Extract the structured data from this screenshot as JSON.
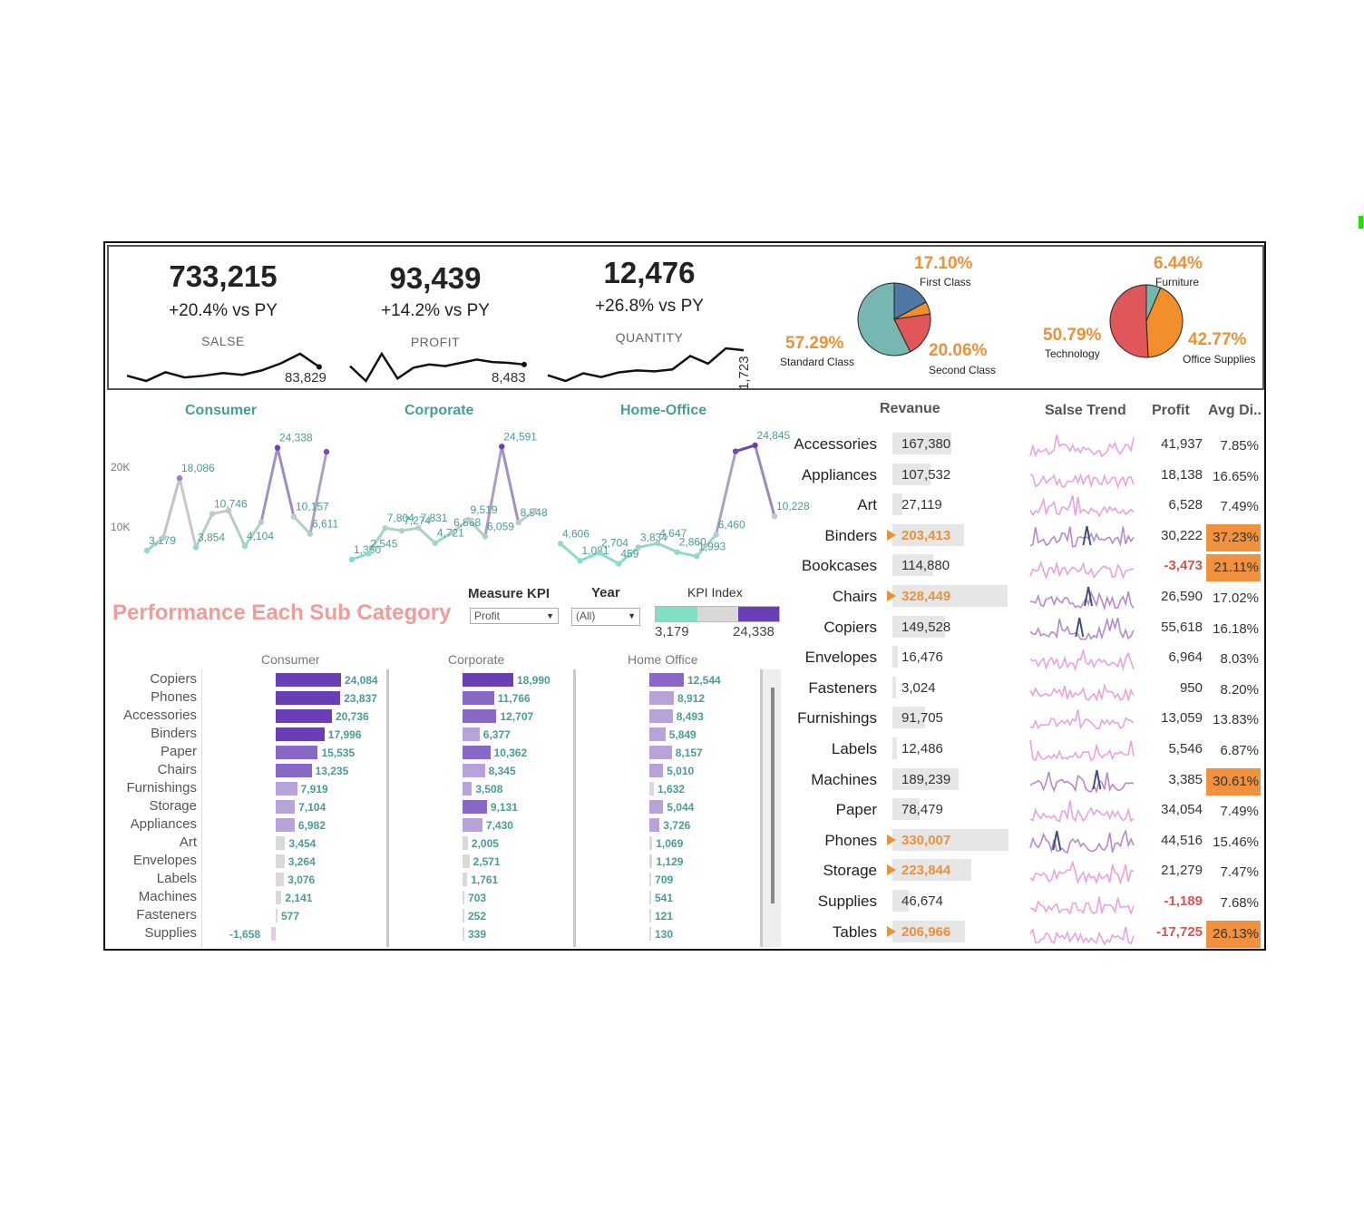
{
  "colors": {
    "accent_orange": "#e8923a",
    "teal_label": "#4a9c96",
    "purple_dark": "#6a3fb5",
    "purple_light": "#b7a3d9",
    "title_pink": "#f19b9b",
    "negative_red": "#d9534f",
    "spark_pink": "#e8a2e0",
    "spark_dark": "#3d4f7a"
  },
  "kpis": [
    {
      "value": "733,215",
      "change": "+20.4% vs PY",
      "label": "SALSE",
      "last": "83,829",
      "spark": [
        30,
        24,
        34,
        28,
        30,
        33,
        31,
        36,
        44,
        55,
        40
      ]
    },
    {
      "value": "93,439",
      "change": "+14.2% vs PY",
      "label": "PROFIT",
      "last": "8,483",
      "spark": [
        40,
        22,
        55,
        25,
        38,
        42,
        40,
        44,
        48,
        45,
        44,
        42
      ]
    },
    {
      "value": "12,476",
      "change": "+26.8% vs PY",
      "label": "QUANTITY",
      "last": "1,723",
      "spark": [
        32,
        26,
        34,
        30,
        35,
        37,
        36,
        38,
        52,
        44,
        60,
        58
      ]
    }
  ],
  "ship_mode_pie": {
    "slices": [
      {
        "label": "First Class",
        "value": 17.1,
        "pct": "17.10%",
        "color": "#4e79a7"
      },
      {
        "label": "Second Class",
        "value": 20.06,
        "pct": "20.06%",
        "color": "#e15759",
        "minor": true
      },
      {
        "label": "Standard Class",
        "value": 57.29,
        "pct": "57.29%",
        "color": "#76b7b2"
      }
    ]
  },
  "ship_mode_pie_slices_full": [
    {
      "label": "First Class",
      "value": 17.1,
      "color": "#4e79a7"
    },
    {
      "label": "",
      "value": 5.55,
      "color": "#f28e2b"
    },
    {
      "label": "Second Class",
      "value": 20.06,
      "color": "#e15759"
    },
    {
      "label": "Standard Class",
      "value": 57.29,
      "color": "#76b7b2"
    }
  ],
  "category_pie": {
    "slices": [
      {
        "label": "Furniture",
        "value": 6.44,
        "pct": "6.44%",
        "color": "#76b7b2"
      },
      {
        "label": "Office Supplies",
        "value": 42.77,
        "pct": "42.77%",
        "color": "#f28e2b"
      },
      {
        "label": "Technology",
        "value": 50.79,
        "pct": "50.79%",
        "color": "#e15759"
      }
    ]
  },
  "segment_titles": [
    "Consumer",
    "Corporate",
    "Home-Office"
  ],
  "chart_data": [
    {
      "type": "line",
      "title": "Consumer",
      "yticks": [
        "20K",
        "10K"
      ],
      "ylim": [
        0,
        28000
      ],
      "values": [
        3179,
        5800,
        18086,
        3854,
        10746,
        11400,
        4104,
        9000,
        24338,
        10157,
        6611,
        23500
      ],
      "labels": [
        "3,179",
        "",
        "18,086",
        "3,854",
        "10,746",
        "",
        "4,104",
        "",
        "24,338",
        "10,157",
        "6,611",
        ""
      ]
    },
    {
      "type": "line",
      "title": "Corporate",
      "values": [
        1350,
        2545,
        7804,
        7274,
        7831,
        4721,
        6868,
        9519,
        6059,
        24591,
        8948,
        11400
      ],
      "labels": [
        "1,350",
        "2,545",
        "7,804",
        "7,274",
        "7,831",
        "4,721",
        "6,868",
        "9,519",
        "6,059",
        "24,591",
        "8,948",
        ""
      ]
    },
    {
      "type": "line",
      "title": "Home-Office",
      "values": [
        4606,
        1081,
        2704,
        459,
        3834,
        4647,
        2860,
        1993,
        6460,
        23600,
        24845,
        10228
      ],
      "labels": [
        "4,606",
        "1,081",
        "2,704",
        "459",
        "3,834",
        "4,647",
        "2,860",
        "1,993",
        "6,460",
        "",
        "24,845",
        "10,228"
      ]
    },
    {
      "type": "bar",
      "title": "Performance Each Sub Category",
      "categories": [
        "Copiers",
        "Phones",
        "Accessories",
        "Binders",
        "Paper",
        "Chairs",
        "Furnishings",
        "Storage",
        "Appliances",
        "Art",
        "Envelopes",
        "Labels",
        "Machines",
        "Fasteners",
        "Supplies"
      ],
      "series": [
        {
          "name": "Consumer",
          "values": [
            24084,
            23837,
            20736,
            17996,
            15535,
            13235,
            7919,
            7104,
            6982,
            3454,
            3264,
            3076,
            2141,
            577,
            -1658
          ],
          "labels": [
            "24,084",
            "23,837",
            "20,736",
            "17,996",
            "15,535",
            "13,235",
            "7,919",
            "7,104",
            "6,982",
            "3,454",
            "3,264",
            "3,076",
            "2,141",
            "577",
            "-1,658"
          ]
        },
        {
          "name": "Corporate",
          "values": [
            18990,
            11766,
            12707,
            6377,
            10362,
            8345,
            3508,
            9131,
            7430,
            2005,
            2571,
            1761,
            703,
            252,
            339
          ],
          "labels": [
            "18,990",
            "11,766",
            "12,707",
            "6,377",
            "10,362",
            "8,345",
            "3,508",
            "9,131",
            "7,430",
            "2,005",
            "2,571",
            "1,761",
            "703",
            "252",
            "339"
          ]
        },
        {
          "name": "Home Office",
          "values": [
            12544,
            8912,
            8493,
            5849,
            8157,
            5010,
            1632,
            5044,
            3726,
            1069,
            1129,
            709,
            541,
            121,
            130
          ],
          "labels": [
            "12,544",
            "8,912",
            "8,493",
            "5,849",
            "8,157",
            "5,010",
            "1,632",
            "5,044",
            "3,726",
            "1,069",
            "1,129",
            "709",
            "541",
            "121",
            "130"
          ]
        }
      ]
    }
  ],
  "perf_title": "Performance Each Sub Category",
  "controls": {
    "measure_title": "Measure KPI",
    "measure_value": "Profit",
    "year_title": "Year",
    "year_value": "(All)",
    "kpi_index_title": "KPI Index",
    "kpi_min": "3,179",
    "kpi_max": "24,338"
  },
  "table": {
    "headers": {
      "revenue": "Revanue",
      "trend": "Salse Trend",
      "profit": "Profit",
      "discount": "Avg Di.."
    },
    "rows": [
      {
        "cat": "Accessories",
        "rev": "167,380",
        "rev_v": 167380,
        "hi": false,
        "profit": "41,937",
        "neg": false,
        "disc": "7.85%",
        "disc_hi": false,
        "dark": false
      },
      {
        "cat": "Appliances",
        "rev": "107,532",
        "rev_v": 107532,
        "hi": false,
        "profit": "18,138",
        "neg": false,
        "disc": "16.65%",
        "disc_hi": false,
        "dark": false
      },
      {
        "cat": "Art",
        "rev": "27,119",
        "rev_v": 27119,
        "hi": false,
        "profit": "6,528",
        "neg": false,
        "disc": "7.49%",
        "disc_hi": false,
        "dark": false
      },
      {
        "cat": "Binders",
        "rev": "203,413",
        "rev_v": 203413,
        "hi": true,
        "profit": "30,222",
        "neg": false,
        "disc": "37.23%",
        "disc_hi": true,
        "dark": true
      },
      {
        "cat": "Bookcases",
        "rev": "114,880",
        "rev_v": 114880,
        "hi": false,
        "profit": "-3,473",
        "neg": true,
        "disc": "21.11%",
        "disc_hi": true,
        "dark": false
      },
      {
        "cat": "Chairs",
        "rev": "328,449",
        "rev_v": 328449,
        "hi": true,
        "profit": "26,590",
        "neg": false,
        "disc": "17.02%",
        "disc_hi": false,
        "dark": true
      },
      {
        "cat": "Copiers",
        "rev": "149,528",
        "rev_v": 149528,
        "hi": false,
        "profit": "55,618",
        "neg": false,
        "disc": "16.18%",
        "disc_hi": false,
        "dark": true
      },
      {
        "cat": "Envelopes",
        "rev": "16,476",
        "rev_v": 16476,
        "hi": false,
        "profit": "6,964",
        "neg": false,
        "disc": "8.03%",
        "disc_hi": false,
        "dark": false
      },
      {
        "cat": "Fasteners",
        "rev": "3,024",
        "rev_v": 3024,
        "hi": false,
        "profit": "950",
        "neg": false,
        "disc": "8.20%",
        "disc_hi": false,
        "dark": false
      },
      {
        "cat": "Furnishings",
        "rev": "91,705",
        "rev_v": 91705,
        "hi": false,
        "profit": "13,059",
        "neg": false,
        "disc": "13.83%",
        "disc_hi": false,
        "dark": false
      },
      {
        "cat": "Labels",
        "rev": "12,486",
        "rev_v": 12486,
        "hi": false,
        "profit": "5,546",
        "neg": false,
        "disc": "6.87%",
        "disc_hi": false,
        "dark": false
      },
      {
        "cat": "Machines",
        "rev": "189,239",
        "rev_v": 189239,
        "hi": false,
        "profit": "3,385",
        "neg": false,
        "disc": "30.61%",
        "disc_hi": true,
        "dark": true
      },
      {
        "cat": "Paper",
        "rev": "78,479",
        "rev_v": 78479,
        "hi": false,
        "profit": "34,054",
        "neg": false,
        "disc": "7.49%",
        "disc_hi": false,
        "dark": false
      },
      {
        "cat": "Phones",
        "rev": "330,007",
        "rev_v": 330007,
        "hi": true,
        "profit": "44,516",
        "neg": false,
        "disc": "15.46%",
        "disc_hi": false,
        "dark": true
      },
      {
        "cat": "Storage",
        "rev": "223,844",
        "rev_v": 223844,
        "hi": true,
        "profit": "21,279",
        "neg": false,
        "disc": "7.47%",
        "disc_hi": false,
        "dark": false
      },
      {
        "cat": "Supplies",
        "rev": "46,674",
        "rev_v": 46674,
        "hi": false,
        "profit": "-1,189",
        "neg": true,
        "disc": "7.68%",
        "disc_hi": false,
        "dark": false
      },
      {
        "cat": "Tables",
        "rev": "206,966",
        "rev_v": 206966,
        "hi": true,
        "profit": "-17,725",
        "neg": true,
        "disc": "26.13%",
        "disc_hi": true,
        "dark": false
      }
    ]
  }
}
